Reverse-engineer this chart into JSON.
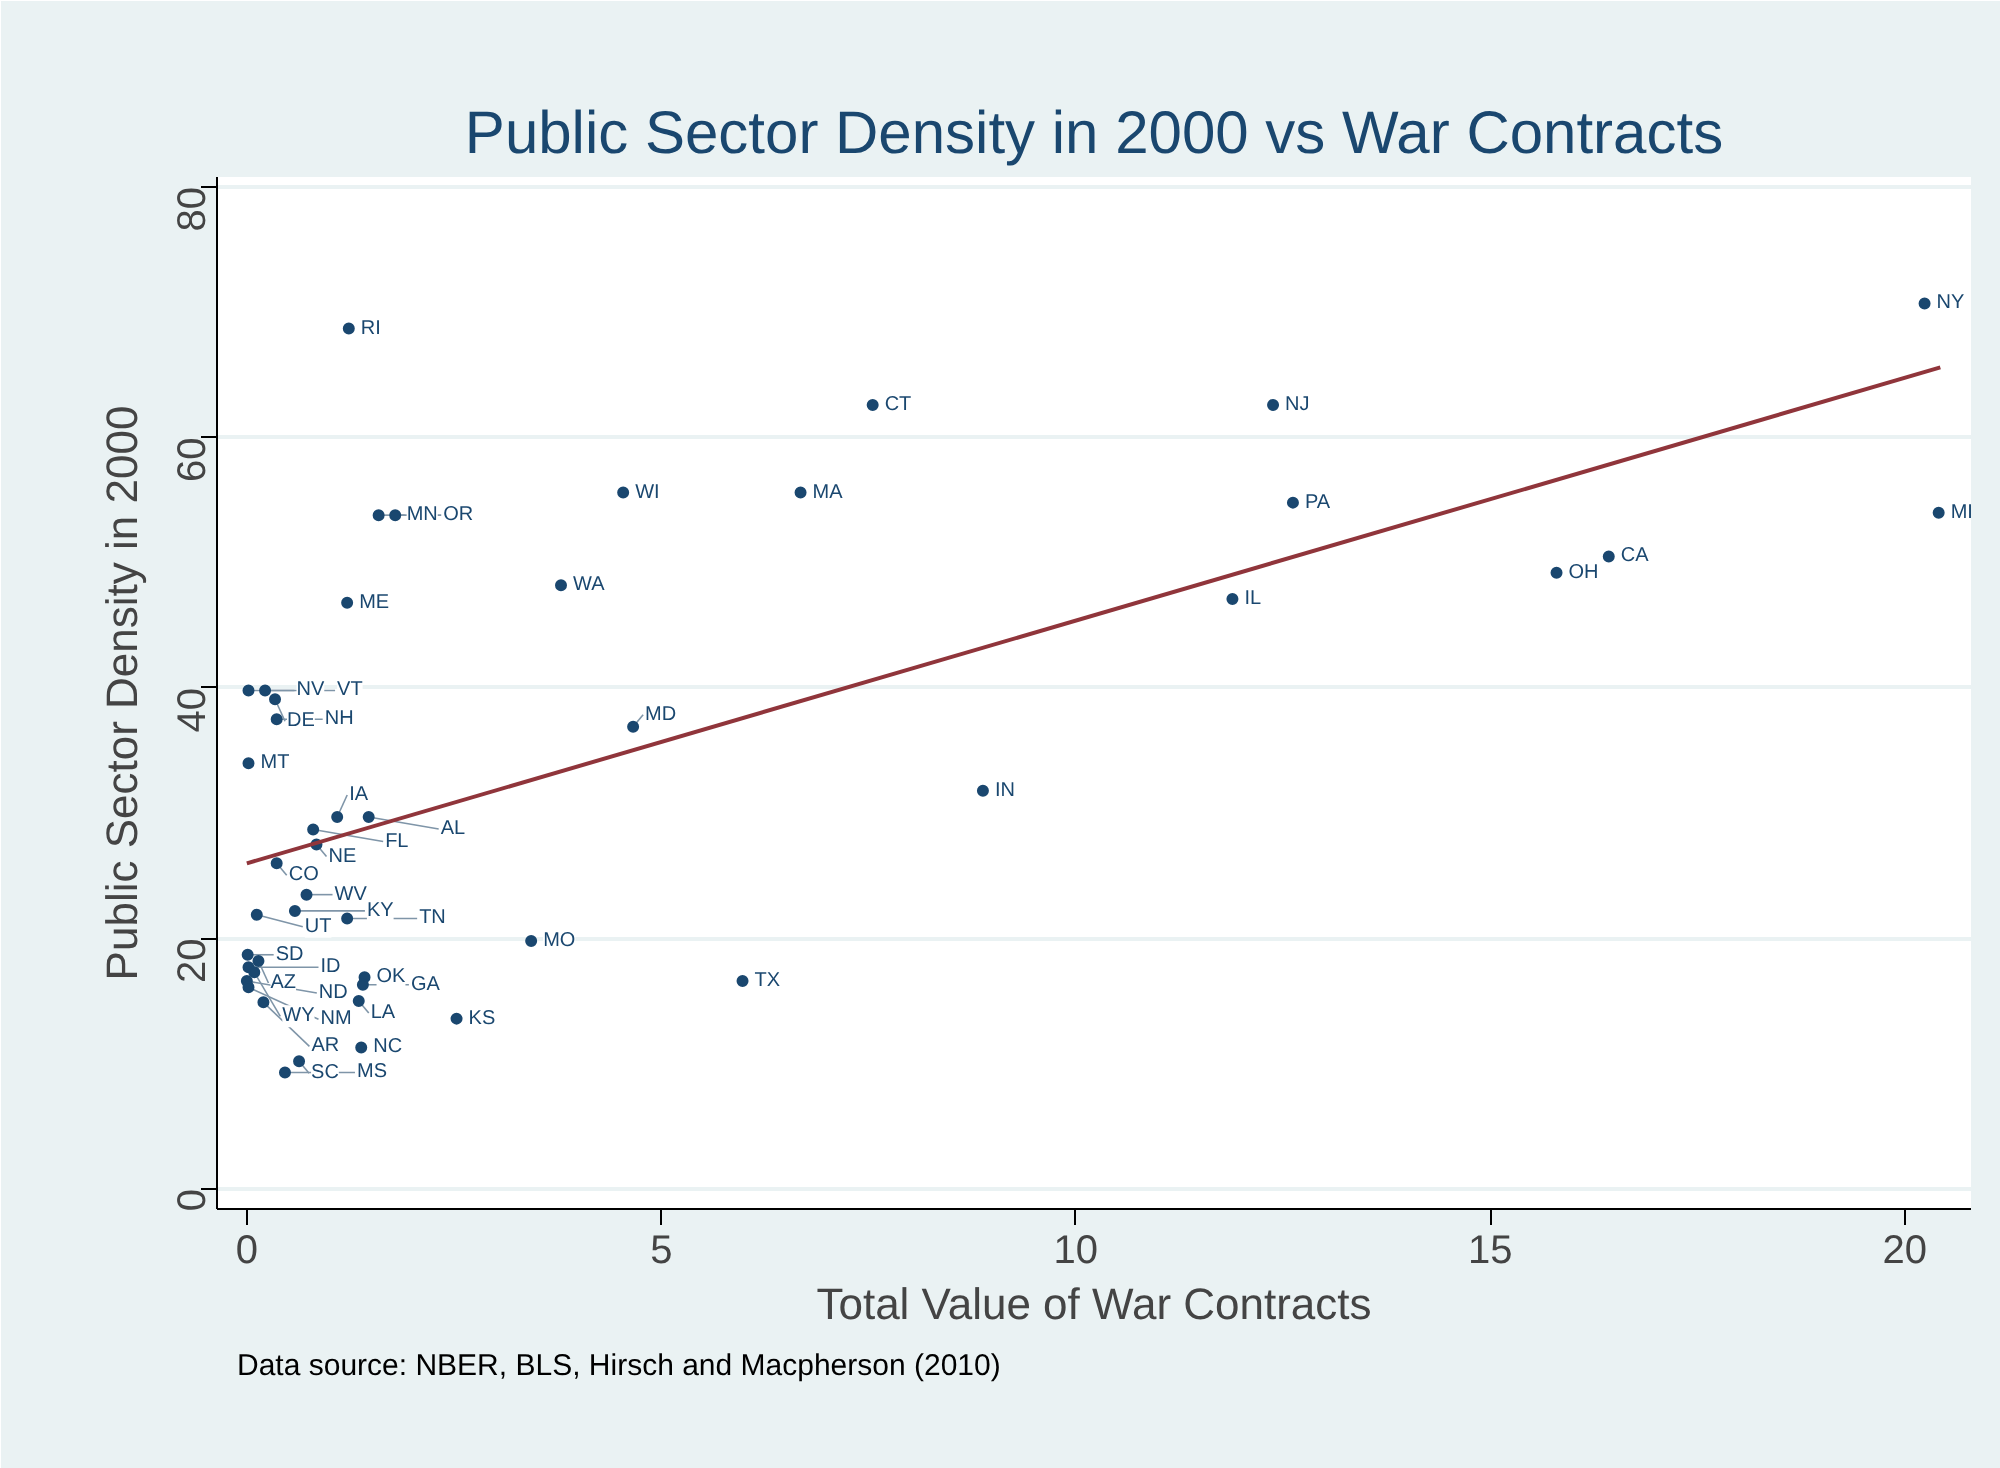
{
  "chart_data": {
    "type": "scatter",
    "title": "Public Sector Density in 2000 vs War Contracts",
    "xlabel": "Total Value of War Contracts",
    "ylabel": "Public Sector Density in 2000",
    "xlim": [
      -0.36,
      20.8
    ],
    "ylim": [
      -1.6,
      80.8
    ],
    "xticks": [
      0,
      5,
      10,
      15,
      20
    ],
    "yticks": [
      0,
      20,
      40,
      60,
      80
    ],
    "grid": "y",
    "series": [
      {
        "marker": "circle",
        "color": "#1a476f",
        "x": [
          1.23,
          20.24,
          7.55,
          12.38,
          4.54,
          6.68,
          12.62,
          20.41,
          1.59,
          1.79,
          16.43,
          15.8,
          3.79,
          11.89,
          1.21,
          0.02,
          0.22,
          0.34,
          0.36,
          0.02,
          4.66,
          8.88,
          1.09,
          1.47,
          0.8,
          0.84,
          0.36,
          0.72,
          0.58,
          0.12,
          1.21,
          3.43,
          0.01,
          0.14,
          0.02,
          0.09,
          0.0,
          0.02,
          0.2,
          1.42,
          1.4,
          1.35,
          2.53,
          1.38,
          0.63,
          0.46,
          5.98
        ],
        "values": [
          68.7,
          70.7,
          62.6,
          62.6,
          55.6,
          55.6,
          54.8,
          54.0,
          53.8,
          53.8,
          50.5,
          49.2,
          48.2,
          47.1,
          46.8,
          39.8,
          39.8,
          39.1,
          37.5,
          34.0,
          36.9,
          31.8,
          29.7,
          29.7,
          28.7,
          27.5,
          26.0,
          23.5,
          22.2,
          21.9,
          21.6,
          19.8,
          18.7,
          18.2,
          17.7,
          17.3,
          16.6,
          16.1,
          14.9,
          16.9,
          16.3,
          15.0,
          13.6,
          11.3,
          10.2,
          9.3,
          16.6
        ]
      },
      {
        "type": "line",
        "color": "#90353b",
        "x": [
          0.0,
          20.43
        ],
        "values": [
          26.0,
          65.6
        ]
      }
    ],
    "annotations": [
      {
        "text": "RI",
        "x": 1.23,
        "y": 68.7
      },
      {
        "text": "NY",
        "x": 20.24,
        "y": 70.7
      },
      {
        "text": "CT",
        "x": 7.55,
        "y": 62.6
      },
      {
        "text": "NJ",
        "x": 12.38,
        "y": 62.6
      },
      {
        "text": "WI",
        "x": 4.54,
        "y": 55.6
      },
      {
        "text": "MA",
        "x": 6.68,
        "y": 55.6
      },
      {
        "text": "PA",
        "x": 12.62,
        "y": 54.8
      },
      {
        "text": "MI",
        "x": 20.41,
        "y": 54.0
      },
      {
        "text": "MN",
        "x": 1.59,
        "y": 53.8
      },
      {
        "text": "OR",
        "x": 1.79,
        "y": 53.8
      },
      {
        "text": "CA",
        "x": 16.43,
        "y": 50.5
      },
      {
        "text": "OH",
        "x": 15.8,
        "y": 49.2
      },
      {
        "text": "WA",
        "x": 3.79,
        "y": 48.2
      },
      {
        "text": "IL",
        "x": 11.89,
        "y": 47.1
      },
      {
        "text": "ME",
        "x": 1.21,
        "y": 46.8
      },
      {
        "text": "NV",
        "x": 0.02,
        "y": 39.8
      },
      {
        "text": "VT",
        "x": 0.22,
        "y": 39.8
      },
      {
        "text": "DE",
        "x": 0.34,
        "y": 39.1
      },
      {
        "text": "NH",
        "x": 0.36,
        "y": 37.5
      },
      {
        "text": "MT",
        "x": 0.02,
        "y": 34.0
      },
      {
        "text": "MD",
        "x": 4.66,
        "y": 36.9
      },
      {
        "text": "IN",
        "x": 8.88,
        "y": 31.8
      },
      {
        "text": "IA",
        "x": 1.09,
        "y": 29.7
      },
      {
        "text": "AL",
        "x": 1.47,
        "y": 29.7
      },
      {
        "text": "FL",
        "x": 0.8,
        "y": 28.7
      },
      {
        "text": "NE",
        "x": 0.84,
        "y": 27.5
      },
      {
        "text": "CO",
        "x": 0.36,
        "y": 26.0
      },
      {
        "text": "WV",
        "x": 0.72,
        "y": 23.5
      },
      {
        "text": "KY",
        "x": 0.58,
        "y": 22.2
      },
      {
        "text": "UT",
        "x": 0.12,
        "y": 21.9
      },
      {
        "text": "TN",
        "x": 1.21,
        "y": 21.6
      },
      {
        "text": "MO",
        "x": 3.43,
        "y": 19.8
      },
      {
        "text": "SD",
        "x": 0.01,
        "y": 18.7
      },
      {
        "text": "AZ",
        "x": 0.14,
        "y": 18.2
      },
      {
        "text": "ID",
        "x": 0.02,
        "y": 17.7
      },
      {
        "text": "WY",
        "x": 0.09,
        "y": 17.3
      },
      {
        "text": "ND",
        "x": 0.0,
        "y": 16.6
      },
      {
        "text": "NM",
        "x": 0.02,
        "y": 16.1
      },
      {
        "text": "AR",
        "x": 0.2,
        "y": 14.9
      },
      {
        "text": "OK",
        "x": 1.42,
        "y": 16.9
      },
      {
        "text": "GA",
        "x": 1.4,
        "y": 16.3
      },
      {
        "text": "LA",
        "x": 1.35,
        "y": 15.0
      },
      {
        "text": "KS",
        "x": 2.53,
        "y": 13.6
      },
      {
        "text": "NC",
        "x": 1.38,
        "y": 11.3
      },
      {
        "text": "SC",
        "x": 0.63,
        "y": 10.2
      },
      {
        "text": "MS",
        "x": 0.46,
        "y": 9.3
      },
      {
        "text": "TX",
        "x": 5.98,
        "y": 16.6
      },
      "Data source: NBER, BLS, Hirsch and Macpherson (2010)"
    ]
  }
}
